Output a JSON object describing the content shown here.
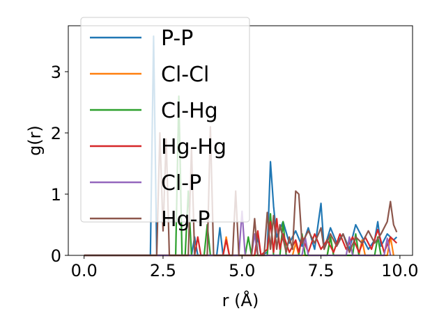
{
  "chart_data": {
    "type": "line",
    "xlabel": "r (Å)",
    "ylabel": "g(r)",
    "xlim": [
      -0.5,
      10.4
    ],
    "ylim": [
      0,
      3.75
    ],
    "xticks": [
      "0.0",
      "2.5",
      "5.0",
      "7.5",
      "10.0"
    ],
    "xtick_values": [
      0,
      2.5,
      5,
      7.5,
      10
    ],
    "yticks": [
      "0",
      "1",
      "2",
      "3"
    ],
    "ytick_values": [
      0,
      1,
      2,
      3
    ],
    "grid": false,
    "legend_position": "top-left",
    "series": [
      {
        "name": "P-P",
        "color": "#1f77b4",
        "x": [
          0,
          2.1,
          2.2,
          2.3,
          3.4,
          3.5,
          3.6,
          4.2,
          4.3,
          4.4,
          5.4,
          5.5,
          5.6,
          5.8,
          5.9,
          6.0,
          6.1,
          6.3,
          6.5,
          6.7,
          6.9,
          7.1,
          7.3,
          7.5,
          7.6,
          7.8,
          8.0,
          8.2,
          8.4,
          8.6,
          8.8,
          9.0,
          9.2,
          9.3,
          9.4,
          9.6,
          9.8,
          9.9
        ],
        "y": [
          0,
          0,
          3.58,
          0,
          0,
          0.3,
          0,
          0,
          0.45,
          0,
          0,
          0.3,
          0,
          0.05,
          1.53,
          0.8,
          0.3,
          0.55,
          0.2,
          0.4,
          0.15,
          0.45,
          0.1,
          0.85,
          0.1,
          0.45,
          0.2,
          0.35,
          0.1,
          0.5,
          0.3,
          0.1,
          0.25,
          0.55,
          0.15,
          0.35,
          0.25,
          0.3
        ]
      },
      {
        "name": "Cl-Cl",
        "color": "#ff7f0e",
        "x": [
          0,
          4.4,
          4.5,
          4.6,
          6.6,
          6.7,
          6.8,
          7.7,
          7.8,
          7.9,
          8.7,
          8.8,
          8.9,
          9.6,
          9.7,
          9.8
        ],
        "y": [
          0,
          0,
          0.3,
          0,
          0,
          0.2,
          0,
          0,
          0.3,
          0,
          0,
          0.25,
          0,
          0,
          0.3,
          0
        ]
      },
      {
        "name": "Cl-Hg",
        "color": "#2ca02c",
        "x": [
          0,
          2.9,
          3.0,
          3.1,
          3.2,
          3.3,
          3.4,
          3.8,
          3.9,
          4.0,
          5.1,
          5.2,
          5.3,
          5.8,
          5.9,
          6.0,
          6.2,
          6.3,
          6.4,
          6.8,
          6.9,
          7.0,
          7.7,
          7.8,
          7.9,
          8.5,
          8.6,
          8.7,
          9.2,
          9.3,
          9.4
        ],
        "y": [
          0,
          0,
          2.6,
          0,
          0,
          1.05,
          0,
          0,
          0.5,
          0,
          0,
          0.3,
          0,
          0,
          0.68,
          0,
          0,
          0.55,
          0,
          0,
          0.35,
          0,
          0,
          0.3,
          0,
          0,
          0.35,
          0,
          0,
          0.3,
          0
        ]
      },
      {
        "name": "Hg-Hg",
        "color": "#d62728",
        "x": [
          0,
          3.5,
          3.6,
          3.7,
          4.4,
          4.5,
          4.6,
          5.4,
          5.5,
          5.6,
          5.8,
          5.9,
          6.0,
          6.1,
          6.2,
          6.3,
          6.5,
          6.7,
          6.8,
          6.9,
          7.1,
          7.3,
          7.5,
          7.7,
          7.9,
          8.1,
          8.3,
          8.5,
          8.7,
          8.9,
          9.1,
          9.3,
          9.5,
          9.7,
          9.9
        ],
        "y": [
          0,
          0,
          0.3,
          0,
          0,
          0.25,
          0,
          0,
          0.4,
          0,
          0.1,
          0.55,
          0.05,
          0.6,
          0.1,
          0.35,
          0.05,
          0.25,
          0.05,
          0.3,
          0.05,
          0.35,
          0.1,
          0.25,
          0.05,
          0.35,
          0.1,
          0.3,
          0.05,
          0.3,
          0.1,
          0.42,
          0.05,
          0.3,
          0.2
        ]
      },
      {
        "name": "Cl-P",
        "color": "#9467bd",
        "x": [
          0,
          4.9,
          5.0,
          5.1,
          5.3,
          5.4,
          5.5,
          6.9,
          7.0,
          7.1,
          8.3,
          8.4,
          8.5,
          9.5,
          9.6,
          9.7
        ],
        "y": [
          0,
          0,
          0.72,
          0,
          0,
          0.35,
          0,
          0,
          0.3,
          0,
          0,
          0.3,
          0,
          0,
          0.28,
          0
        ]
      },
      {
        "name": "Hg-P",
        "color": "#8c564b",
        "x": [
          0,
          2.3,
          2.4,
          2.5,
          2.6,
          2.7,
          3.3,
          3.4,
          3.5,
          3.9,
          4.0,
          4.1,
          4.7,
          4.8,
          4.9,
          5.3,
          5.4,
          5.5,
          5.7,
          5.8,
          5.9,
          6.0,
          6.1,
          6.2,
          6.4,
          6.5,
          6.6,
          6.7,
          6.8,
          6.9,
          7.1,
          7.3,
          7.5,
          7.6,
          7.8,
          8.0,
          8.2,
          8.4,
          8.6,
          8.8,
          9.0,
          9.2,
          9.4,
          9.6,
          9.7,
          9.8,
          9.9
        ],
        "y": [
          0,
          0,
          2.0,
          0.4,
          1.9,
          0,
          0,
          1.75,
          0,
          0,
          2.1,
          0,
          0,
          1.05,
          0,
          0,
          0.6,
          0,
          0,
          0.7,
          0.1,
          0.65,
          0.1,
          0.5,
          0.05,
          0.3,
          0.1,
          1.05,
          1.0,
          0.2,
          0.4,
          0.2,
          0.45,
          0.1,
          0.35,
          0.15,
          0.35,
          0.05,
          0.3,
          0.2,
          0.4,
          0.2,
          0.35,
          0.55,
          0.88,
          0.5,
          0.38
        ]
      }
    ]
  }
}
